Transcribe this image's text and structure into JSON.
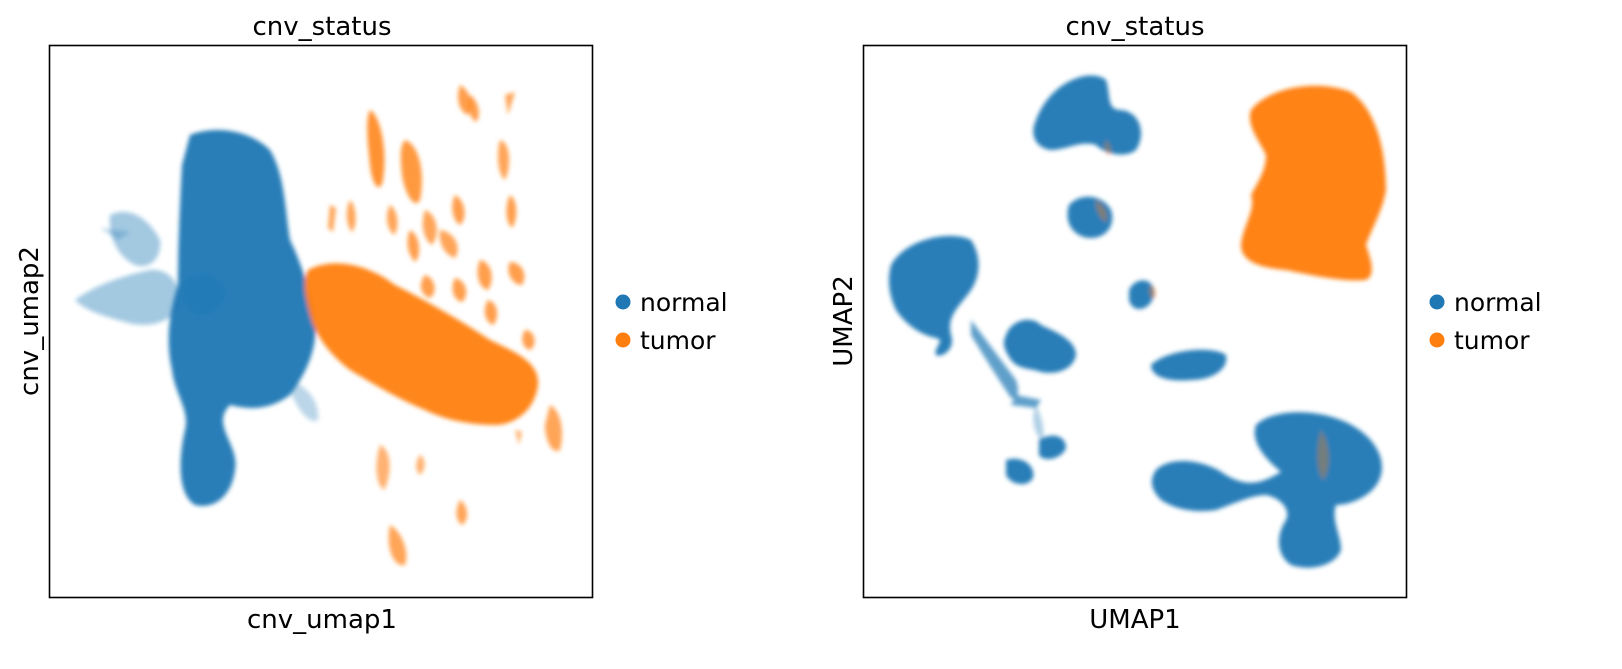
{
  "colors": {
    "normal": "#1f77b4",
    "tumor": "#ff7f0e",
    "frame": "#000000"
  },
  "chart_data": [
    {
      "type": "scatter",
      "title": "cnv_status",
      "xlabel": "cnv_umap1",
      "ylabel": "cnv_umap2",
      "xticks": [],
      "yticks": [],
      "grid": false,
      "legend_placement": "right",
      "series": [
        {
          "name": "normal",
          "color": "#1f77b4"
        },
        {
          "name": "tumor",
          "color": "#ff7f0e"
        }
      ]
    },
    {
      "type": "scatter",
      "title": "cnv_status",
      "xlabel": "UMAP1",
      "ylabel": "UMAP2",
      "xticks": [],
      "yticks": [],
      "grid": false,
      "legend_placement": "right",
      "series": [
        {
          "name": "normal",
          "color": "#1f77b4"
        },
        {
          "name": "tumor",
          "color": "#ff7f0e"
        }
      ]
    }
  ]
}
